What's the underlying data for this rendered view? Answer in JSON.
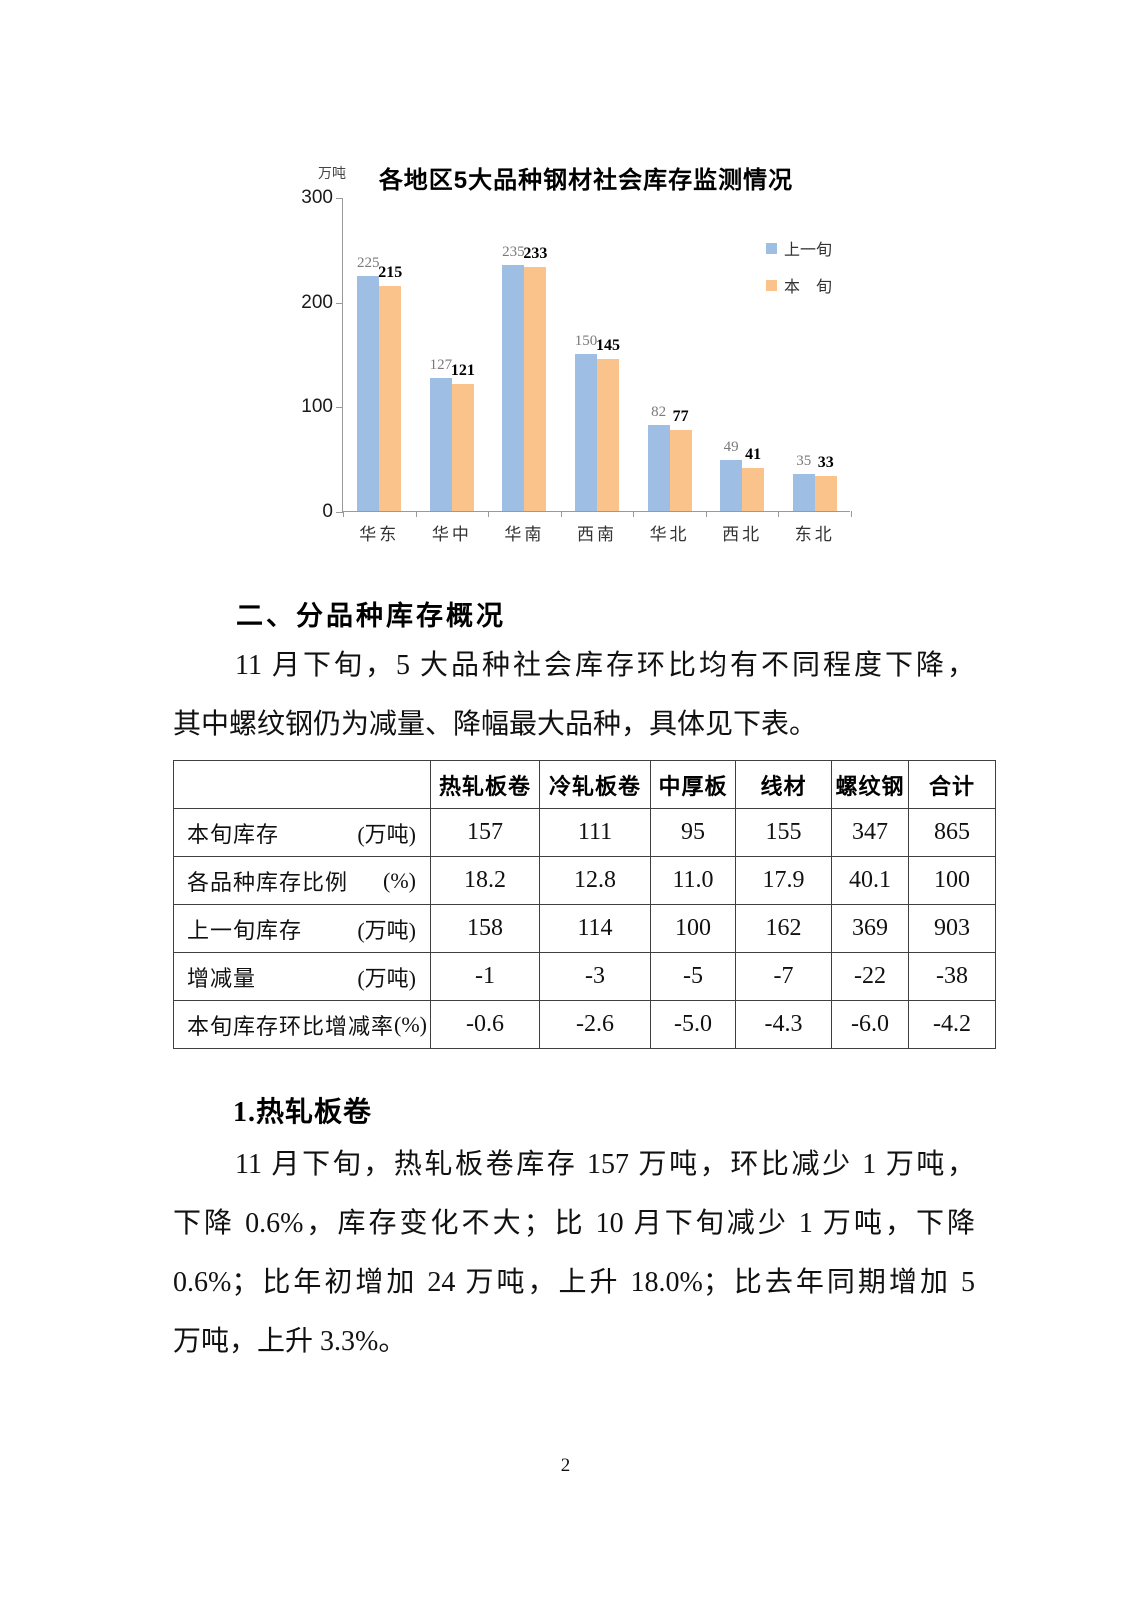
{
  "page": {
    "number": "2"
  },
  "chart": {
    "title": "各地区5大品种钢材社会库存监测情况",
    "unit_label": "万吨",
    "legend": [
      {
        "label": "上一旬",
        "color": "#9FBEE3"
      },
      {
        "label": "本　旬",
        "color": "#FAC38C"
      }
    ]
  },
  "chart_data": {
    "type": "bar",
    "title": "各地区5大品种钢材社会库存监测情况",
    "ylabel": "万吨",
    "categories": [
      "华东",
      "华中",
      "华南",
      "西南",
      "华北",
      "西北",
      "东北"
    ],
    "series": [
      {
        "name": "上一旬",
        "color": "#9FBEE3",
        "values": [
          225,
          127,
          235,
          150,
          82,
          49,
          35
        ]
      },
      {
        "name": "本旬",
        "color": "#FAC38C",
        "values": [
          215,
          121,
          233,
          145,
          77,
          41,
          33
        ]
      }
    ],
    "ylim": [
      0,
      300
    ],
    "y_ticks": [
      300,
      200,
      100,
      0
    ],
    "grid": false,
    "legend_position": "top-right"
  },
  "sections": {
    "heading1": "二、分品种库存概况",
    "para1_lines": [
      "11 月下旬，5 大品种社会库存环比均有不同程度下降，",
      "其中螺纹钢仍为减量、降幅最大品种，具体见下表。"
    ],
    "heading2": "1.热轧板卷",
    "para2_lines": [
      "11 月下旬，热轧板卷库存 157 万吨，环比减少 1 万吨，",
      "下降 0.6%，库存变化不大；比 10 月下旬减少 1 万吨，下降",
      "0.6%；比年初增加 24 万吨，上升 18.0%；比去年同期增加 5",
      "万吨，上升 3.3%。"
    ]
  },
  "table": {
    "columns": [
      "热轧板卷",
      "冷轧板卷",
      "中厚板",
      "线材",
      "螺纹钢",
      "合计"
    ],
    "rows": [
      {
        "label": "本旬库存",
        "unit": "(万吨)",
        "values": [
          "157",
          "111",
          "95",
          "155",
          "347",
          "865"
        ]
      },
      {
        "label": "各品种库存比例",
        "unit": "(%)",
        "values": [
          "18.2",
          "12.8",
          "11.0",
          "17.9",
          "40.1",
          "100"
        ]
      },
      {
        "label": "上一旬库存",
        "unit": "(万吨)",
        "values": [
          "158",
          "114",
          "100",
          "162",
          "369",
          "903"
        ]
      },
      {
        "label": "增减量",
        "unit": "(万吨)",
        "values": [
          "-1",
          "-3",
          "-5",
          "-7",
          "-22",
          "-38"
        ]
      },
      {
        "label": "本旬库存环比增减率",
        "unit": "(%)",
        "values": [
          "-0.6",
          "-2.6",
          "-5.0",
          "-4.3",
          "-6.0",
          "-4.2"
        ]
      }
    ]
  }
}
